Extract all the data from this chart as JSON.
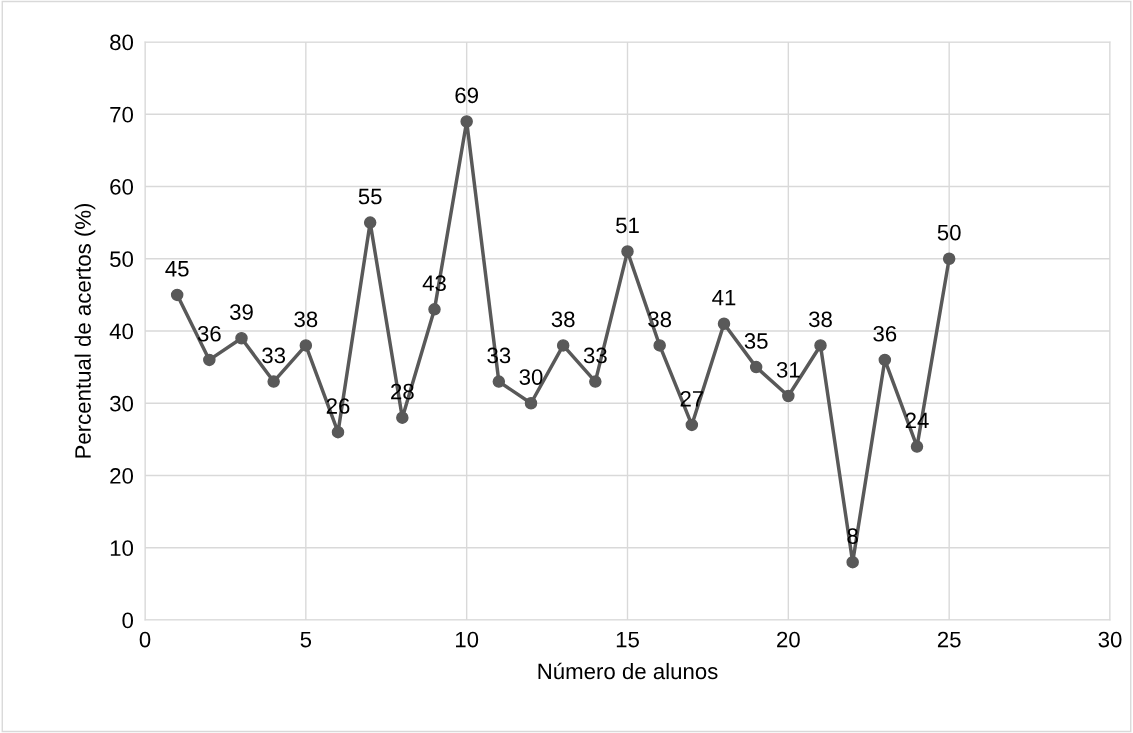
{
  "chart_data": {
    "type": "line",
    "xlabel": "Número de alunos",
    "ylabel": "Percentual de acertos (%)",
    "x": [
      1,
      2,
      3,
      4,
      5,
      6,
      7,
      8,
      9,
      10,
      11,
      12,
      13,
      14,
      15,
      16,
      17,
      18,
      19,
      20,
      21,
      22,
      23,
      24,
      25
    ],
    "series": [
      {
        "color": "#595959",
        "values": [
          45,
          36,
          39,
          33,
          38,
          26,
          55,
          28,
          43,
          69,
          33,
          30,
          38,
          33,
          51,
          38,
          27,
          41,
          35,
          31,
          38,
          8,
          36,
          24,
          50
        ]
      }
    ],
    "xlim": [
      0,
      30
    ],
    "xticks": [
      0,
      5,
      10,
      15,
      20,
      25,
      30
    ],
    "ylim": [
      0,
      80
    ],
    "yticks": [
      0,
      10,
      20,
      30,
      40,
      50,
      60,
      70,
      80
    ],
    "grid": true,
    "marker": "circle",
    "line_style": "solid",
    "data_labels": true,
    "legend": false
  }
}
